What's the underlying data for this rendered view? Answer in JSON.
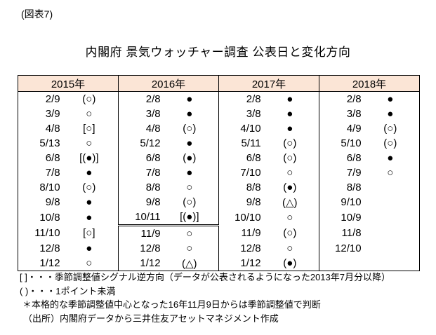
{
  "figure_label": "(図表7)",
  "title": "内閣府 景気ウォッチャー調査 公表日と変化方向",
  "colors": {
    "header_bg": "#fbe5d6",
    "border": "#000000",
    "text": "#000000"
  },
  "symbols": {
    "open_circle": "○",
    "filled_circle": "●",
    "open_triangle": "△"
  },
  "table": {
    "columns": [
      {
        "year": "2015年",
        "rows": [
          {
            "date": "2/9",
            "mark": "(○)"
          },
          {
            "date": "3/9",
            "mark": "○"
          },
          {
            "date": "4/8",
            "mark": "[○]"
          },
          {
            "date": "5/13",
            "mark": "○"
          },
          {
            "date": "6/8",
            "mark": "[(●)]"
          },
          {
            "date": "7/8",
            "mark": "●"
          },
          {
            "date": "8/10",
            "mark": "(○)"
          },
          {
            "date": "9/8",
            "mark": "●"
          },
          {
            "date": "10/8",
            "mark": "●"
          },
          {
            "date": "11/10",
            "mark": "[○]"
          },
          {
            "date": "12/8",
            "mark": "●"
          },
          {
            "date": "1/12",
            "mark": "○"
          }
        ]
      },
      {
        "year": "2016年",
        "rows": [
          {
            "date": "2/8",
            "mark": "●"
          },
          {
            "date": "3/8",
            "mark": "●"
          },
          {
            "date": "4/8",
            "mark": "(○)"
          },
          {
            "date": "5/12",
            "mark": "●"
          },
          {
            "date": "6/8",
            "mark": "(●)"
          },
          {
            "date": "7/8",
            "mark": "●"
          },
          {
            "date": "8/8",
            "mark": "○"
          },
          {
            "date": "9/8",
            "mark": "(○)"
          },
          {
            "date": "10/11",
            "mark": "[(●)]",
            "double_line_after": true
          },
          {
            "date": "11/9",
            "mark": "○"
          },
          {
            "date": "12/8",
            "mark": "○"
          },
          {
            "date": "1/12",
            "mark": "(△)"
          }
        ]
      },
      {
        "year": "2017年",
        "rows": [
          {
            "date": "2/8",
            "mark": "●"
          },
          {
            "date": "3/8",
            "mark": "●"
          },
          {
            "date": "4/10",
            "mark": "●"
          },
          {
            "date": "5/11",
            "mark": "(○)"
          },
          {
            "date": "6/8",
            "mark": "(○)"
          },
          {
            "date": "7/10",
            "mark": "○"
          },
          {
            "date": "8/8",
            "mark": "(●)"
          },
          {
            "date": "9/8",
            "mark": "(△)"
          },
          {
            "date": "10/10",
            "mark": "○"
          },
          {
            "date": "11/9",
            "mark": "(○)"
          },
          {
            "date": "12/8",
            "mark": "○"
          },
          {
            "date": "1/12",
            "mark": "(●)"
          }
        ]
      },
      {
        "year": "2018年",
        "rows": [
          {
            "date": "2/8",
            "mark": "●"
          },
          {
            "date": "3/8",
            "mark": "●"
          },
          {
            "date": "4/9",
            "mark": "(○)"
          },
          {
            "date": "5/10",
            "mark": "(○)"
          },
          {
            "date": "6/8",
            "mark": "●"
          },
          {
            "date": "7/9",
            "mark": "○"
          },
          {
            "date": "8/8",
            "mark": ""
          },
          {
            "date": "9/10",
            "mark": ""
          },
          {
            "date": "10/9",
            "mark": ""
          },
          {
            "date": "11/8",
            "mark": ""
          },
          {
            "date": "12/10",
            "mark": ""
          },
          {
            "date": "",
            "mark": ""
          }
        ]
      }
    ]
  },
  "notes": [
    "[ ]・・・季節調整値シグナル逆方向（データが公表されるようになった2013年7月分以降）",
    "( )・・・1ポイント未満",
    "＊本格的な季節調整値中心となった16年11月9日からは季節調整値で判断",
    "（出所）内閣府データから三井住友アセットマネジメント作成"
  ]
}
